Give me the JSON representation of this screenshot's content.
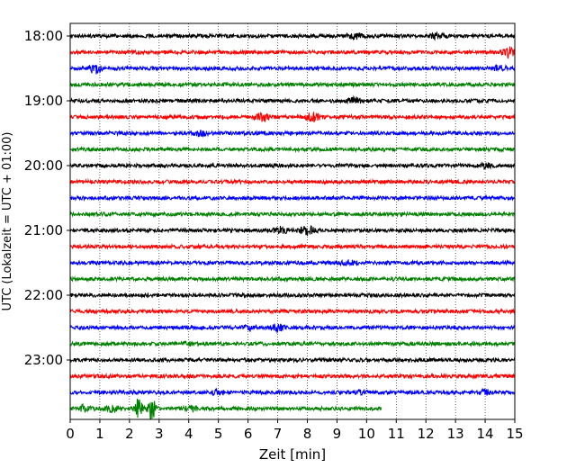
{
  "chart_data": {
    "type": "line",
    "title": "",
    "xlabel": "Zeit  [min]",
    "ylabel": "UTC (Lokalzeit = UTC + 01:00)",
    "xlim": [
      0,
      15
    ],
    "xticks": [
      "0",
      "1",
      "2",
      "3",
      "4",
      "5",
      "6",
      "7",
      "8",
      "9",
      "10",
      "11",
      "12",
      "13",
      "14",
      "15"
    ],
    "yticks": [
      "18:00",
      "19:00",
      "20:00",
      "21:00",
      "22:00",
      "23:00"
    ],
    "grid": "vertical dotted lines at each minute",
    "colors": [
      "#000000",
      "#ff0000",
      "#0000ff",
      "#008000"
    ],
    "series": [
      {
        "start": "18:00",
        "color": "#000000",
        "end_min": 15,
        "bursts": [
          {
            "min": 9.6,
            "amp": 0.35
          },
          {
            "min": 12.4,
            "amp": 0.3
          }
        ]
      },
      {
        "start": "18:15",
        "color": "#ff0000",
        "end_min": 15,
        "bursts": [
          {
            "min": 14.8,
            "amp": 0.6
          }
        ]
      },
      {
        "start": "18:30",
        "color": "#0000ff",
        "end_min": 15,
        "bursts": [
          {
            "min": 0.8,
            "amp": 0.6
          },
          {
            "min": 14.5,
            "amp": 0.3
          }
        ]
      },
      {
        "start": "18:45",
        "color": "#008000",
        "end_min": 15,
        "bursts": []
      },
      {
        "start": "19:00",
        "color": "#000000",
        "end_min": 15,
        "bursts": [
          {
            "min": 9.6,
            "amp": 0.3
          }
        ]
      },
      {
        "start": "19:15",
        "color": "#ff0000",
        "end_min": 15,
        "bursts": [
          {
            "min": 6.5,
            "amp": 0.45
          },
          {
            "min": 8.2,
            "amp": 0.45
          }
        ]
      },
      {
        "start": "19:30",
        "color": "#0000ff",
        "end_min": 15,
        "bursts": [
          {
            "min": 4.4,
            "amp": 0.3
          }
        ]
      },
      {
        "start": "19:45",
        "color": "#008000",
        "end_min": 15,
        "bursts": []
      },
      {
        "start": "20:00",
        "color": "#000000",
        "end_min": 15,
        "bursts": [
          {
            "min": 14.0,
            "amp": 0.25
          }
        ]
      },
      {
        "start": "20:15",
        "color": "#ff0000",
        "end_min": 15,
        "bursts": []
      },
      {
        "start": "20:30",
        "color": "#0000ff",
        "end_min": 15,
        "bursts": []
      },
      {
        "start": "20:45",
        "color": "#008000",
        "end_min": 15,
        "bursts": []
      },
      {
        "start": "21:00",
        "color": "#000000",
        "end_min": 15,
        "bursts": [
          {
            "min": 7.1,
            "amp": 0.35
          },
          {
            "min": 8.0,
            "amp": 0.5
          }
        ]
      },
      {
        "start": "21:15",
        "color": "#ff0000",
        "end_min": 15,
        "bursts": []
      },
      {
        "start": "21:30",
        "color": "#0000ff",
        "end_min": 15,
        "bursts": [
          {
            "min": 9.4,
            "amp": 0.25
          }
        ]
      },
      {
        "start": "21:45",
        "color": "#008000",
        "end_min": 15,
        "bursts": []
      },
      {
        "start": "22:00",
        "color": "#000000",
        "end_min": 15,
        "bursts": []
      },
      {
        "start": "22:15",
        "color": "#ff0000",
        "end_min": 15,
        "bursts": []
      },
      {
        "start": "22:30",
        "color": "#0000ff",
        "end_min": 15,
        "bursts": [
          {
            "min": 6.1,
            "amp": 0.3
          },
          {
            "min": 7.0,
            "amp": 0.4
          }
        ]
      },
      {
        "start": "22:45",
        "color": "#008000",
        "end_min": 15,
        "bursts": [
          {
            "min": 4.0,
            "amp": 0.2
          }
        ]
      },
      {
        "start": "23:00",
        "color": "#000000",
        "end_min": 15,
        "bursts": []
      },
      {
        "start": "23:15",
        "color": "#ff0000",
        "end_min": 15,
        "bursts": []
      },
      {
        "start": "23:30",
        "color": "#0000ff",
        "end_min": 15,
        "bursts": [
          {
            "min": 5.0,
            "amp": 0.25
          },
          {
            "min": 9.8,
            "amp": 0.25
          },
          {
            "min": 14.0,
            "amp": 0.3
          }
        ]
      },
      {
        "start": "23:45",
        "color": "#008000",
        "end_min": 10.5,
        "bursts": [
          {
            "min": 0.5,
            "amp": 0.35
          },
          {
            "min": 1.4,
            "amp": 0.3
          },
          {
            "min": 2.3,
            "amp": 1.25
          },
          {
            "min": 2.75,
            "amp": 1.25
          },
          {
            "min": 4.1,
            "amp": 0.3
          }
        ]
      }
    ]
  }
}
